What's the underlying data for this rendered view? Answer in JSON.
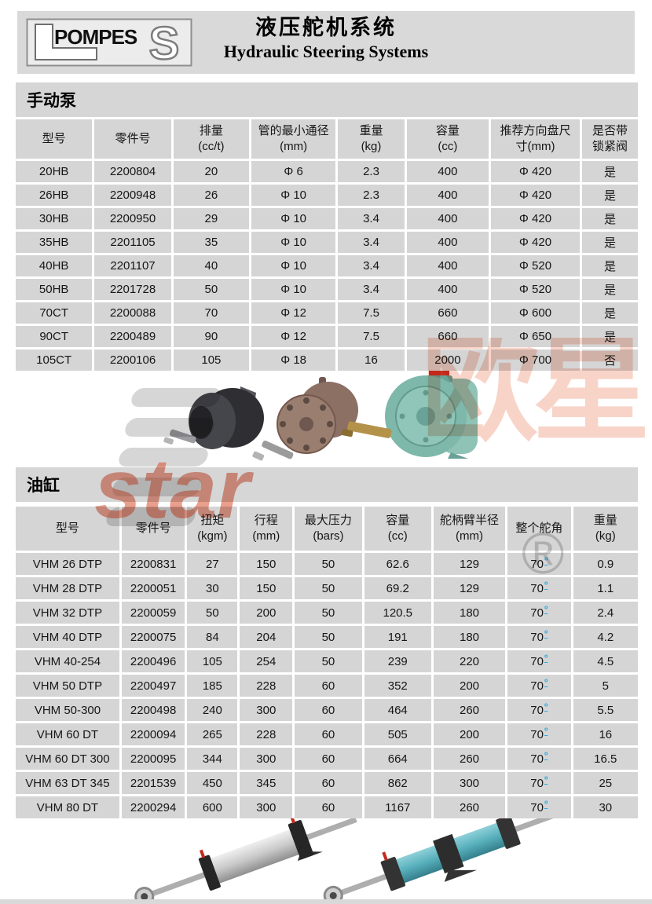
{
  "header": {
    "title_zh": "液压舵机系统",
    "title_en": "Hydraulic Steering Systems",
    "logo_l": "L",
    "logo_text": "POMPES",
    "logo_s": "S"
  },
  "pump_section": {
    "title": "手动泵",
    "columns": [
      {
        "line1": "型号",
        "line2": ""
      },
      {
        "line1": "零件号",
        "line2": ""
      },
      {
        "line1": "排量",
        "line2": "(cc/t)"
      },
      {
        "line1": "管的最小通径",
        "line2": "(mm)"
      },
      {
        "line1": "重量",
        "line2": "(kg)"
      },
      {
        "line1": "容量",
        "line2": "(cc)"
      },
      {
        "line1": "推荐方向盘尺",
        "line2": "寸(mm)"
      },
      {
        "line1": "是否带",
        "line2": "锁紧阀"
      }
    ],
    "rows": [
      [
        "20HB",
        "2200804",
        "20",
        "Φ 6",
        "2.3",
        "400",
        "Φ 420",
        "是"
      ],
      [
        "26HB",
        "2200948",
        "26",
        "Φ 10",
        "2.3",
        "400",
        "Φ 420",
        "是"
      ],
      [
        "30HB",
        "2200950",
        "29",
        "Φ 10",
        "3.4",
        "400",
        "Φ 420",
        "是"
      ],
      [
        "35HB",
        "2201105",
        "35",
        "Φ 10",
        "3.4",
        "400",
        "Φ 420",
        "是"
      ],
      [
        "40HB",
        "2201107",
        "40",
        "Φ 10",
        "3.4",
        "400",
        "Φ 520",
        "是"
      ],
      [
        "50HB",
        "2201728",
        "50",
        "Φ 10",
        "3.4",
        "400",
        "Φ 520",
        "是"
      ],
      [
        "70CT",
        "2200088",
        "70",
        "Φ 12",
        "7.5",
        "660",
        "Φ 600",
        "是"
      ],
      [
        "90CT",
        "2200489",
        "90",
        "Φ 12",
        "7.5",
        "660",
        "Φ 650",
        "是"
      ],
      [
        "105CT",
        "2200106",
        "105",
        "Φ 18",
        "16",
        "2000",
        "Φ 700",
        "否"
      ]
    ]
  },
  "cylinder_section": {
    "title": "油缸",
    "columns": [
      {
        "line1": "型号",
        "line2": ""
      },
      {
        "line1": "零件号",
        "line2": ""
      },
      {
        "line1": "扭矩",
        "line2": "(kgm)"
      },
      {
        "line1": "行程",
        "line2": "(mm)"
      },
      {
        "line1": "最大压力",
        "line2": "(bars)"
      },
      {
        "line1": "容量",
        "line2": "(cc)"
      },
      {
        "line1": "舵柄臂半径",
        "line2": "(mm)"
      },
      {
        "line1": "整个舵角",
        "line2": ""
      },
      {
        "line1": "重量",
        "line2": "(kg)"
      }
    ],
    "angle_col": 7,
    "angle_symbol": "º",
    "rows": [
      [
        "VHM 26 DTP",
        "2200831",
        "27",
        "150",
        "50",
        "62.6",
        "129",
        "70",
        "0.9"
      ],
      [
        "VHM 28 DTP",
        "2200051",
        "30",
        "150",
        "50",
        "69.2",
        "129",
        "70",
        "1.1"
      ],
      [
        "VHM 32 DTP",
        "2200059",
        "50",
        "200",
        "50",
        "120.5",
        "180",
        "70",
        "2.4"
      ],
      [
        "VHM 40 DTP",
        "2200075",
        "84",
        "204",
        "50",
        "191",
        "180",
        "70",
        "4.2"
      ],
      [
        "VHM 40-254",
        "2200496",
        "105",
        "254",
        "50",
        "239",
        "220",
        "70",
        "4.5"
      ],
      [
        "VHM 50 DTP",
        "2200497",
        "185",
        "228",
        "60",
        "352",
        "200",
        "70",
        "5"
      ],
      [
        "VHM 50-300",
        "2200498",
        "240",
        "300",
        "60",
        "464",
        "260",
        "70",
        "5.5"
      ],
      [
        "VHM 60 DT",
        "2200094",
        "265",
        "228",
        "60",
        "505",
        "200",
        "70",
        "16"
      ],
      [
        "VHM 60 DT 300",
        "2200095",
        "344",
        "300",
        "60",
        "664",
        "260",
        "70",
        "16.5"
      ],
      [
        "VHM 63 DT 345",
        "2201539",
        "450",
        "345",
        "60",
        "862",
        "300",
        "70",
        "25"
      ],
      [
        "VHM 80 DT",
        "2200294",
        "600",
        "300",
        "60",
        "1167",
        "260",
        "70",
        "30"
      ]
    ]
  },
  "watermark": {
    "zh": "欧星",
    "en": "star",
    "reg": "®"
  },
  "images": {
    "pumps": [
      "dark-manual-helm-pump",
      "bronze-flange-helm-pump",
      "teal-helm-pump-red-cap"
    ],
    "cylinders": [
      "silver-hydraulic-cylinder",
      "teal-hydraulic-cylinder"
    ]
  },
  "colors": {
    "banner_gray": "#d9d9d9",
    "cell_gray": "#d5d5d5",
    "accent_blue": "#29abe2",
    "watermark_salmon": "#e97049",
    "watermark_red": "#d7401c"
  }
}
